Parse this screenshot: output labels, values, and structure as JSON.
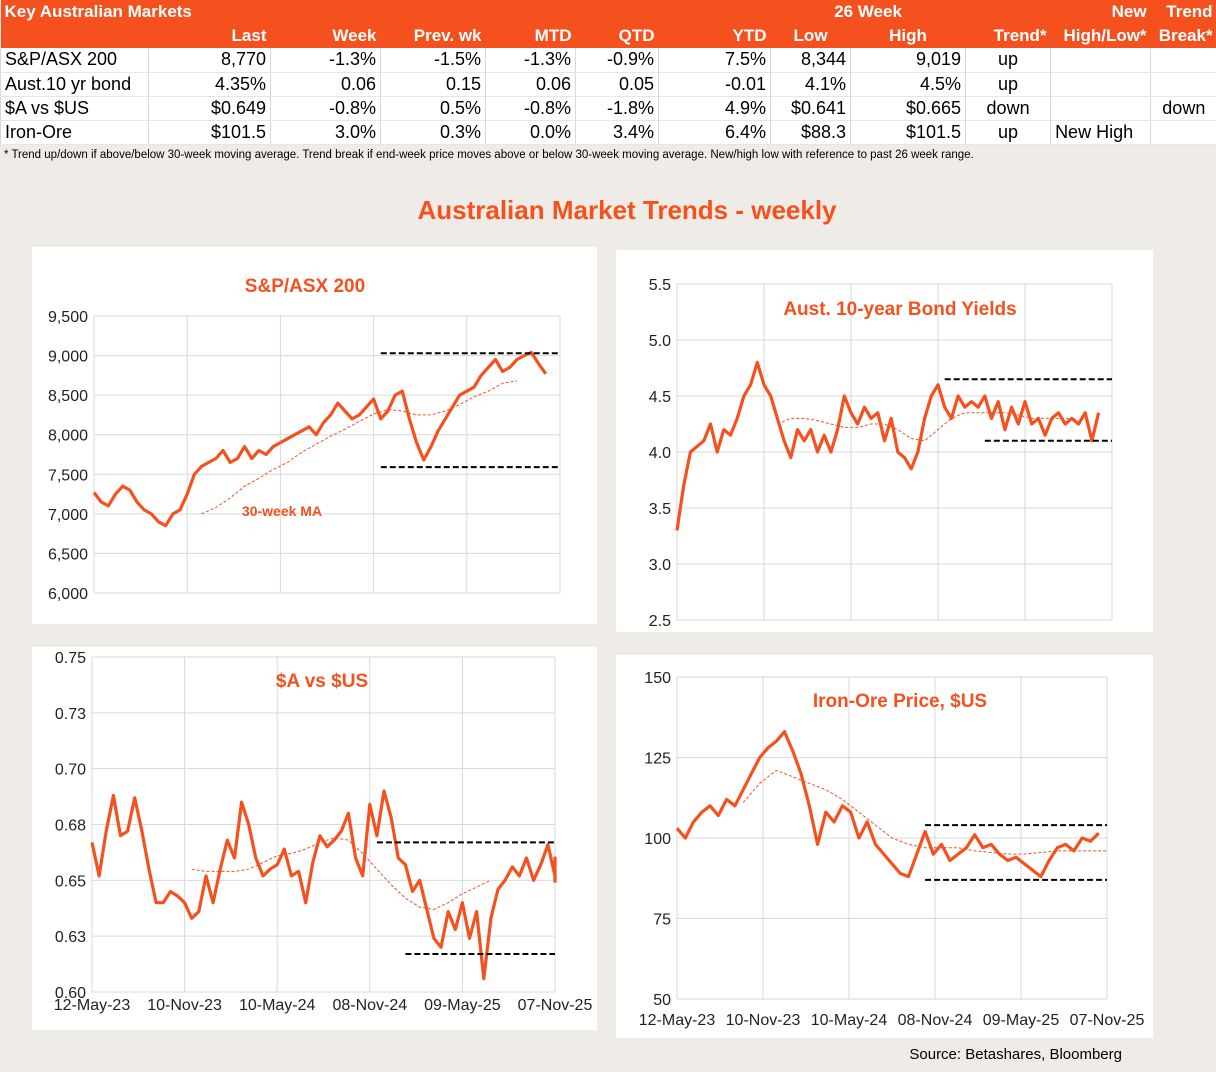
{
  "table": {
    "title": "Key Australian Markets",
    "group_26week": "26 Week",
    "group_new": "New",
    "group_trend": "Trend",
    "columns": [
      "",
      "Last",
      "Week",
      "Prev. wk",
      "MTD",
      "QTD",
      "YTD",
      "Low",
      "High",
      "Trend*",
      "High/Low*",
      "Break*"
    ],
    "rows": [
      [
        "S&P/ASX 200",
        "8,770",
        "-1.3%",
        "-1.5%",
        "-1.3%",
        "-0.9%",
        "7.5%",
        "8,344",
        "9,019",
        "up",
        "",
        ""
      ],
      [
        "Aust.10 yr bond",
        "4.35%",
        "0.06",
        "0.15",
        "0.06",
        "0.05",
        "-0.01",
        "4.1%",
        "4.5%",
        "up",
        "",
        ""
      ],
      [
        "$A vs $US",
        "$0.649",
        "-0.8%",
        "0.5%",
        "-0.8%",
        "-1.8%",
        "4.9%",
        "$0.641",
        "$0.665",
        "down",
        "",
        "down"
      ],
      [
        "Iron-Ore",
        "$101.5",
        "3.0%",
        "0.3%",
        "0.0%",
        "3.4%",
        "6.4%",
        "$88.3",
        "$101.5",
        "up",
        "New High",
        ""
      ]
    ],
    "footnote": "*  Trend up/down if above/below 30-week moving average. Trend break if end-week price moves above or below 30-week moving average.  New/high low with reference to past 26 week range."
  },
  "main_title": "Australian Market Trends - weekly",
  "source": "Source: Betashares, Bloomberg",
  "colors": {
    "accent": "#f4511e",
    "line": "#f4511e",
    "reference": "#000000",
    "grid": "#d9d9d9"
  },
  "chart_data": [
    {
      "type": "line",
      "title": "S&P/ASX 200",
      "x_range_weeks": [
        0,
        130
      ],
      "x_labels": [],
      "ylim": [
        6000,
        9500
      ],
      "y_ticks": [
        6000,
        6500,
        7000,
        7500,
        8000,
        8500,
        9000,
        9500
      ],
      "y_tick_labels": [
        "6,000",
        "6,500",
        "7,000",
        "7,500",
        "8,000",
        "8,500",
        "9,000",
        "9,500"
      ],
      "annotation": "30-week MA",
      "series": [
        {
          "name": "Weekly",
          "start_week": 0,
          "step_weeks": 2,
          "values": [
            7270,
            7150,
            7100,
            7250,
            7350,
            7300,
            7150,
            7050,
            7000,
            6900,
            6850,
            7000,
            7050,
            7250,
            7500,
            7600,
            7650,
            7700,
            7800,
            7650,
            7700,
            7850,
            7700,
            7800,
            7750,
            7850,
            7900,
            7950,
            8000,
            8050,
            8100,
            8000,
            8150,
            8250,
            8400,
            8300,
            8200,
            8250,
            8350,
            8450,
            8200,
            8300,
            8500,
            8550,
            8200,
            7900,
            7680,
            7850,
            8050,
            8200,
            8350,
            8500,
            8550,
            8600,
            8750,
            8850,
            8950,
            8800,
            8850,
            8950,
            9000,
            9040,
            8900,
            8770
          ]
        },
        {
          "name": "30-week MA",
          "start_week": 30,
          "step_weeks": 4,
          "values": [
            7000,
            7080,
            7200,
            7350,
            7450,
            7560,
            7650,
            7780,
            7880,
            7980,
            8070,
            8170,
            8260,
            8320,
            8300,
            8250,
            8250,
            8300,
            8380,
            8480,
            8550,
            8650,
            8680
          ]
        }
      ],
      "reference_lines": [
        {
          "value": 9030,
          "from_week": 80,
          "to_week": 130
        },
        {
          "value": 7590,
          "from_week": 80,
          "to_week": 130
        }
      ]
    },
    {
      "type": "line",
      "title": "Aust. 10-year Bond Yields",
      "x_range_weeks": [
        0,
        130
      ],
      "x_labels": [],
      "ylim": [
        2.5,
        5.5
      ],
      "y_ticks": [
        2.5,
        3.0,
        3.5,
        4.0,
        4.5,
        5.0,
        5.5
      ],
      "y_tick_labels": [
        "2.5",
        "3.0",
        "3.5",
        "4.0",
        "4.5",
        "5.0",
        "5.5"
      ],
      "series": [
        {
          "name": "Weekly",
          "start_week": 0,
          "step_weeks": 2,
          "values": [
            3.3,
            3.7,
            4.0,
            4.05,
            4.1,
            4.25,
            4.0,
            4.2,
            4.15,
            4.3,
            4.5,
            4.6,
            4.8,
            4.6,
            4.5,
            4.3,
            4.1,
            3.95,
            4.2,
            4.1,
            4.2,
            4.0,
            4.15,
            4.0,
            4.2,
            4.5,
            4.35,
            4.25,
            4.4,
            4.3,
            4.35,
            4.1,
            4.3,
            4.0,
            3.95,
            3.85,
            4.0,
            4.3,
            4.5,
            4.6,
            4.4,
            4.3,
            4.5,
            4.4,
            4.45,
            4.4,
            4.5,
            4.3,
            4.45,
            4.2,
            4.4,
            4.25,
            4.45,
            4.25,
            4.3,
            4.15,
            4.3,
            4.35,
            4.25,
            4.3,
            4.25,
            4.35,
            4.1,
            4.35
          ]
        },
        {
          "name": "30-week MA",
          "start_week": 30,
          "step_weeks": 4,
          "values": [
            4.25,
            4.3,
            4.3,
            4.28,
            4.25,
            4.22,
            4.22,
            4.25,
            4.25,
            4.2,
            4.12,
            4.1,
            4.2,
            4.3,
            4.35,
            4.35,
            4.35,
            4.35,
            4.33,
            4.3,
            4.3,
            4.3,
            4.3
          ]
        }
      ],
      "reference_lines": [
        {
          "value": 4.65,
          "from_week": 80,
          "to_week": 130
        },
        {
          "value": 4.1,
          "from_week": 92,
          "to_week": 130
        }
      ]
    },
    {
      "type": "line",
      "title": "$A vs $US",
      "x_range_weeks": [
        0,
        130
      ],
      "x_labels": [
        "12-May-23",
        "10-Nov-23",
        "10-May-24",
        "08-Nov-24",
        "09-May-25",
        "07-Nov-25"
      ],
      "ylim": [
        0.6,
        0.75
      ],
      "y_ticks": [
        0.6,
        0.625,
        0.65,
        0.675,
        0.7,
        0.725,
        0.75
      ],
      "y_tick_labels": [
        "0.60",
        "0.63",
        "0.65",
        "0.68",
        "0.70",
        "0.73",
        "0.75"
      ],
      "series": [
        {
          "name": "Weekly",
          "start_week": 0,
          "step_weeks": 2,
          "values": [
            0.667,
            0.652,
            0.672,
            0.688,
            0.67,
            0.672,
            0.687,
            0.672,
            0.655,
            0.64,
            0.64,
            0.645,
            0.643,
            0.64,
            0.633,
            0.636,
            0.652,
            0.64,
            0.655,
            0.668,
            0.66,
            0.685,
            0.675,
            0.66,
            0.652,
            0.655,
            0.657,
            0.664,
            0.652,
            0.654,
            0.64,
            0.658,
            0.67,
            0.665,
            0.668,
            0.672,
            0.68,
            0.66,
            0.652,
            0.684,
            0.67,
            0.69,
            0.678,
            0.66,
            0.657,
            0.645,
            0.65,
            0.637,
            0.624,
            0.62,
            0.636,
            0.628,
            0.64,
            0.624,
            0.636,
            0.606,
            0.633,
            0.646,
            0.65,
            0.656,
            0.652,
            0.66,
            0.65,
            0.657,
            0.666,
            0.652,
            0.66,
            0.649
          ]
        },
        {
          "name": "30-week MA",
          "start_week": 28,
          "step_weeks": 4,
          "values": [
            0.655,
            0.654,
            0.654,
            0.654,
            0.655,
            0.658,
            0.661,
            0.662,
            0.664,
            0.667,
            0.669,
            0.668,
            0.662,
            0.655,
            0.648,
            0.642,
            0.638,
            0.637,
            0.64,
            0.644,
            0.647,
            0.65
          ]
        }
      ],
      "reference_lines": [
        {
          "value": 0.667,
          "from_week": 80,
          "to_week": 130
        },
        {
          "value": 0.617,
          "from_week": 88,
          "to_week": 130
        }
      ]
    },
    {
      "type": "line",
      "title": "Iron-Ore Price, $US",
      "x_range_weeks": [
        0,
        130
      ],
      "x_labels": [
        "12-May-23",
        "10-Nov-23",
        "10-May-24",
        "08-Nov-24",
        "09-May-25",
        "07-Nov-25"
      ],
      "ylim": [
        50,
        150
      ],
      "y_ticks": [
        50,
        75,
        100,
        125,
        150
      ],
      "y_tick_labels": [
        "50",
        "75",
        "100",
        "125",
        "150"
      ],
      "series": [
        {
          "name": "Weekly",
          "start_week": 0,
          "step_weeks": 2.5,
          "values": [
            103,
            100,
            105,
            108,
            110,
            107,
            112,
            110,
            115,
            120,
            125,
            128,
            130,
            133,
            127,
            120,
            110,
            98,
            108,
            105,
            110,
            108,
            100,
            105,
            98,
            95,
            92,
            89,
            88,
            95,
            102,
            95,
            98,
            93,
            95,
            97,
            101,
            97,
            98,
            95,
            93,
            94,
            92,
            90,
            88,
            93,
            97,
            98,
            96,
            100,
            99,
            101.5
          ]
        },
        {
          "name": "30-week MA",
          "start_week": 20,
          "step_weeks": 5,
          "values": [
            111,
            117,
            121,
            119,
            117,
            115,
            112,
            108,
            104,
            100,
            98,
            97,
            97,
            97,
            96,
            95.5,
            95,
            95,
            95.5,
            96,
            96,
            96,
            96
          ]
        }
      ],
      "reference_lines": [
        {
          "value": 104,
          "from_week": 75,
          "to_week": 130
        },
        {
          "value": 87,
          "from_week": 75,
          "to_week": 130
        }
      ]
    }
  ]
}
